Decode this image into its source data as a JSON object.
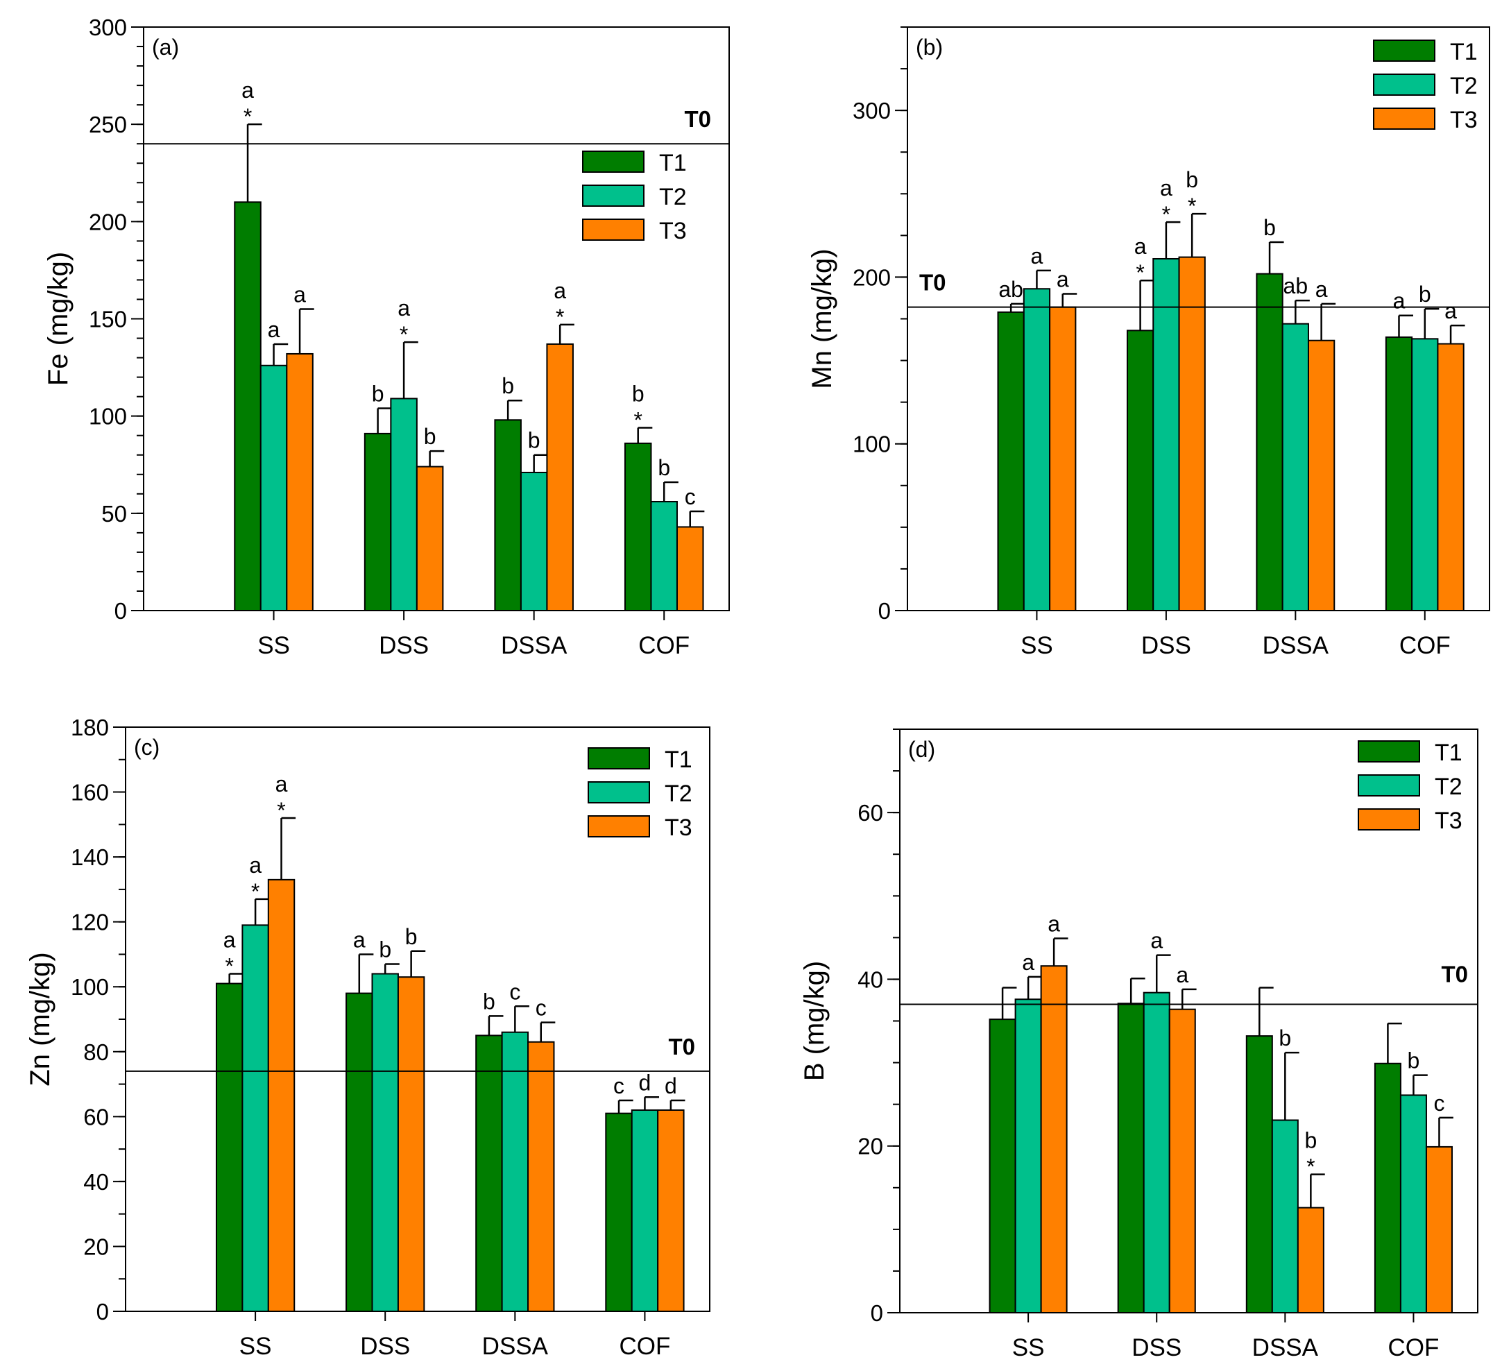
{
  "legend": [
    "T1",
    "T2",
    "T3"
  ],
  "colors": {
    "T1": "#007d00",
    "T2": "#00c08c",
    "T3": "#ff8000"
  },
  "chart_data": [
    {
      "type": "bar",
      "panel_label": "(a)",
      "ylabel": "Fe (mg/kg)",
      "ylim": [
        0,
        300
      ],
      "yticks": [
        0,
        50,
        100,
        150,
        200,
        250,
        300
      ],
      "minor_step": 10,
      "categories": [
        "SS",
        "DSS",
        "DSSA",
        "COF"
      ],
      "reference_label": "T0",
      "reference_value": 240,
      "legend_position": "upper-right-below-T0",
      "series": [
        {
          "name": "T1",
          "values": [
            210,
            91,
            98,
            86
          ],
          "errors": [
            40,
            13,
            10,
            8
          ],
          "labels": [
            "a\n*",
            "b",
            "b",
            "b\n*"
          ]
        },
        {
          "name": "T2",
          "values": [
            126,
            109,
            71,
            56
          ],
          "errors": [
            11,
            29,
            9,
            10
          ],
          "labels": [
            "a",
            "a\n*",
            "b",
            "b"
          ]
        },
        {
          "name": "T3",
          "values": [
            132,
            74,
            137,
            43
          ],
          "errors": [
            23,
            8,
            10,
            8
          ],
          "labels": [
            "a",
            "b",
            "a\n*",
            "c"
          ]
        }
      ]
    },
    {
      "type": "bar",
      "panel_label": "(b)",
      "ylabel": "Mn (mg/kg)",
      "ylim": [
        0,
        350
      ],
      "yticks": [
        0,
        100,
        200,
        300
      ],
      "minor_step": 25,
      "categories": [
        "SS",
        "DSS",
        "DSSA",
        "COF"
      ],
      "reference_label": "T0",
      "reference_value": 182,
      "legend_position": "top-right",
      "series": [
        {
          "name": "T1",
          "values": [
            179,
            168,
            202,
            164
          ],
          "errors": [
            5,
            30,
            19,
            13
          ],
          "labels": [
            "ab",
            "a\n*",
            "b",
            "a"
          ]
        },
        {
          "name": "T2",
          "values": [
            193,
            211,
            172,
            163
          ],
          "errors": [
            11,
            22,
            14,
            18
          ],
          "labels": [
            "a",
            "a\n*",
            "ab",
            "b"
          ]
        },
        {
          "name": "T3",
          "values": [
            182,
            212,
            162,
            160
          ],
          "errors": [
            8,
            26,
            22,
            11
          ],
          "labels": [
            "a",
            "b\n*",
            "a",
            "a"
          ]
        }
      ]
    },
    {
      "type": "bar",
      "panel_label": "(c)",
      "ylabel": "Zn (mg/kg)",
      "ylim": [
        0,
        180
      ],
      "yticks": [
        0,
        20,
        40,
        60,
        80,
        100,
        120,
        140,
        160,
        180
      ],
      "minor_step": 10,
      "categories": [
        "SS",
        "DSS",
        "DSSA",
        "COF"
      ],
      "reference_label": "T0",
      "reference_value": 74,
      "legend_position": "top-right",
      "series": [
        {
          "name": "T1",
          "values": [
            101,
            98,
            85,
            61
          ],
          "errors": [
            3,
            12,
            6,
            4
          ],
          "labels": [
            "a\n*",
            "a",
            "b",
            "c"
          ]
        },
        {
          "name": "T2",
          "values": [
            119,
            104,
            86,
            62
          ],
          "errors": [
            8,
            3,
            8,
            4
          ],
          "labels": [
            "a\n*",
            "b",
            "c",
            "d"
          ]
        },
        {
          "name": "T3",
          "values": [
            133,
            103,
            83,
            62
          ],
          "errors": [
            19,
            8,
            6,
            3
          ],
          "labels": [
            "a\n*",
            "b",
            "c",
            "d"
          ]
        }
      ]
    },
    {
      "type": "bar",
      "panel_label": "(d)",
      "ylabel": "B (mg/kg)",
      "ylim": [
        0,
        70
      ],
      "yticks": [
        0,
        20,
        40,
        60
      ],
      "minor_step": 5,
      "categories": [
        "SS",
        "DSS",
        "DSSA",
        "COF"
      ],
      "reference_label": "T0",
      "reference_value": 37,
      "legend_position": "top-right",
      "series": [
        {
          "name": "T1",
          "values": [
            35.2,
            37.1,
            33.2,
            29.9
          ],
          "errors": [
            3.8,
            3.0,
            5.8,
            4.8
          ],
          "labels": [
            "",
            "",
            "",
            ""
          ]
        },
        {
          "name": "T2",
          "values": [
            37.6,
            38.4,
            23.1,
            26.1
          ],
          "errors": [
            2.7,
            4.5,
            8.1,
            2.4
          ],
          "labels": [
            "a",
            "a",
            "b",
            "b"
          ]
        },
        {
          "name": "T3",
          "values": [
            41.6,
            36.4,
            12.6,
            19.9
          ],
          "errors": [
            3.3,
            2.4,
            4.0,
            3.5
          ],
          "labels": [
            "a",
            "a",
            "b\n*",
            "c"
          ]
        }
      ]
    }
  ]
}
